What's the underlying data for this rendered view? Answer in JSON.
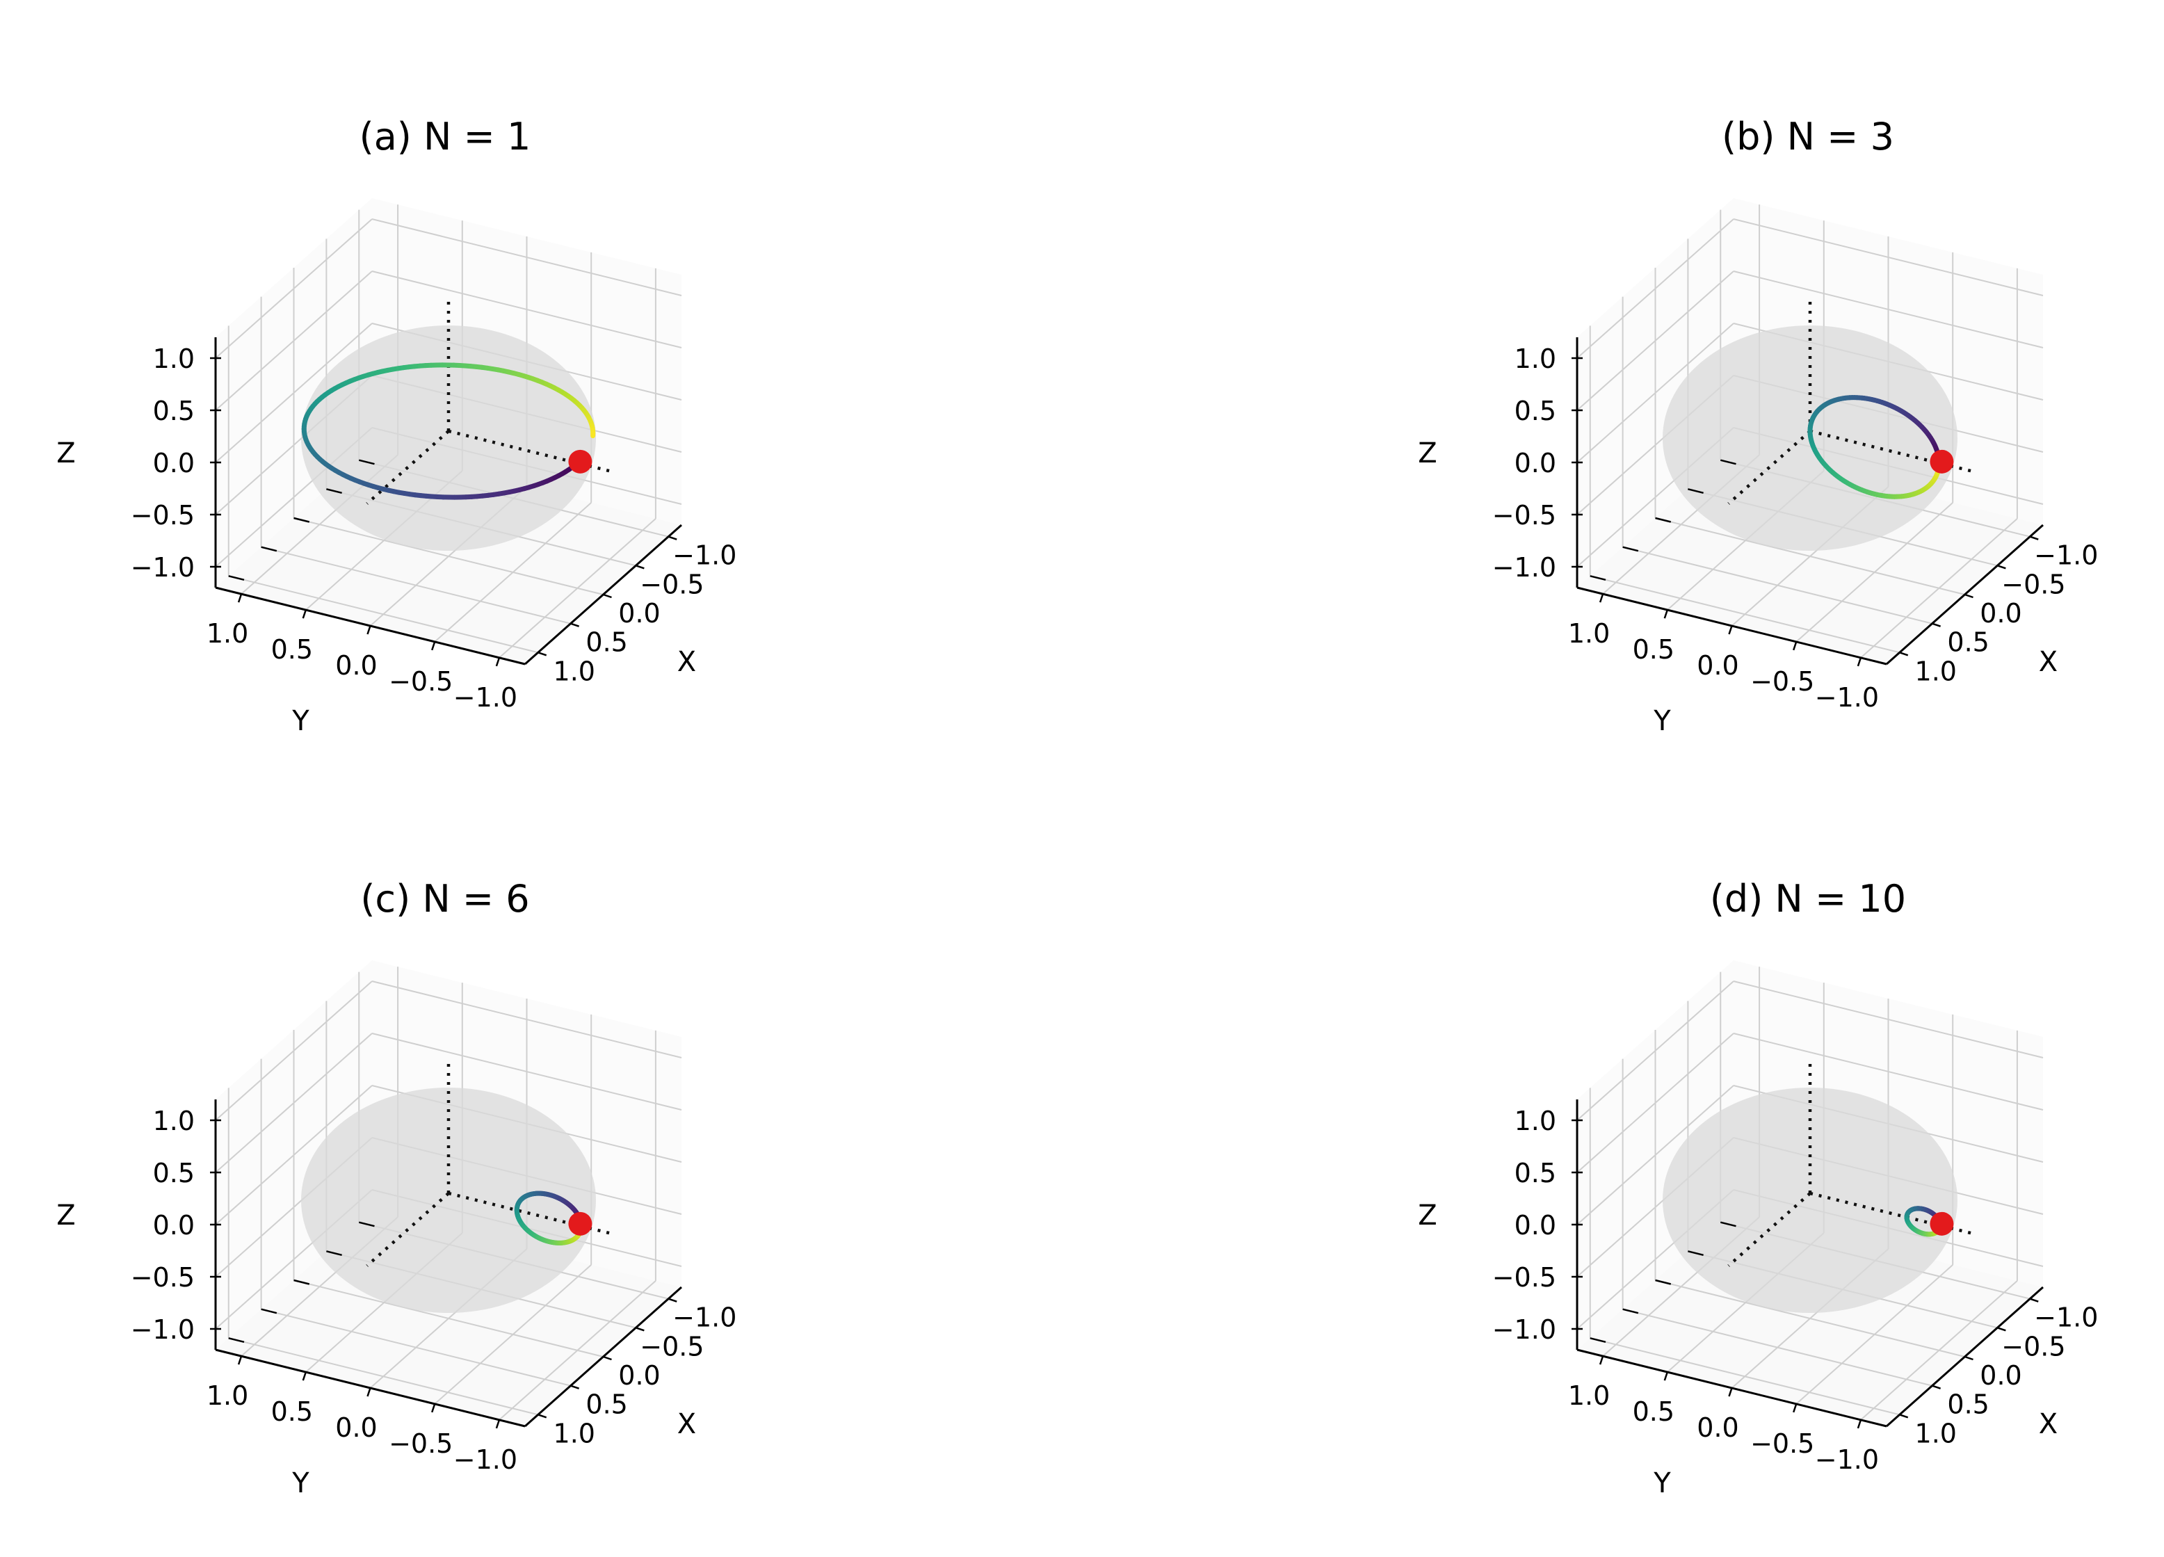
{
  "chart_data": [
    {
      "type": "3d-line",
      "title": "(a) N = 1",
      "xlabel": "X",
      "ylabel": "Y",
      "zlabel": "Z",
      "xlim": [
        -1.2,
        1.2
      ],
      "ylim": [
        -1.2,
        1.2
      ],
      "zlim": [
        -1.2,
        1.2
      ],
      "xticks": [
        "1.0",
        "0.5",
        "0.0",
        "−0.5",
        "−1.0"
      ],
      "yticks": [
        "1.0",
        "0.5",
        "0.0",
        "−0.5",
        "−1.0"
      ],
      "zticks": [
        "1.0",
        "0.5",
        "0.0",
        "−0.5",
        "−1.0"
      ],
      "grid": true,
      "sphere_radius": 1.0,
      "colormap": "viridis",
      "start_point": {
        "x": 1.0,
        "y": 0.0,
        "z": 0.0,
        "color": "#e31a1c"
      },
      "trajectory": {
        "center": [
          0,
          0,
          0
        ],
        "radius": 1.0,
        "plane": "xy",
        "fraction": 0.93
      }
    },
    {
      "type": "3d-line",
      "title": "(b) N = 3",
      "xlabel": "X",
      "ylabel": "Y",
      "zlabel": "Z",
      "xlim": [
        -1.2,
        1.2
      ],
      "ylim": [
        -1.2,
        1.2
      ],
      "zlim": [
        -1.2,
        1.2
      ],
      "xticks": [
        "1.0",
        "0.5",
        "0.0",
        "−0.5",
        "−1.0"
      ],
      "yticks": [
        "1.0",
        "0.5",
        "0.0",
        "−0.5",
        "−1.0"
      ],
      "zticks": [
        "1.0",
        "0.5",
        "0.0",
        "−0.5",
        "−1.0"
      ],
      "grid": true,
      "sphere_radius": 1.0,
      "colormap": "viridis",
      "start_point": {
        "x": 1.0,
        "y": 0.0,
        "z": 0.0,
        "color": "#e31a1c"
      },
      "trajectory": {
        "center": [
          0.5,
          0,
          0
        ],
        "radius": 0.5,
        "plane": "xz",
        "fraction": 1.0
      }
    },
    {
      "type": "3d-line",
      "title": "(c) N = 6",
      "xlabel": "X",
      "ylabel": "Y",
      "zlabel": "Z",
      "xlim": [
        -1.2,
        1.2
      ],
      "ylim": [
        -1.2,
        1.2
      ],
      "zlim": [
        -1.2,
        1.2
      ],
      "xticks": [
        "1.0",
        "0.5",
        "0.0",
        "−0.5",
        "−1.0"
      ],
      "yticks": [
        "1.0",
        "0.5",
        "0.0",
        "−0.5",
        "−1.0"
      ],
      "zticks": [
        "1.0",
        "0.5",
        "0.0",
        "−0.5",
        "−1.0"
      ],
      "grid": true,
      "sphere_radius": 1.0,
      "colormap": "viridis",
      "start_point": {
        "x": 1.0,
        "y": 0.0,
        "z": 0.0,
        "color": "#e31a1c"
      },
      "trajectory": {
        "center": [
          0.78,
          0,
          0
        ],
        "radius": 0.25,
        "plane": "xz",
        "fraction": 1.0
      }
    },
    {
      "type": "3d-line",
      "title": "(d) N = 10",
      "xlabel": "X",
      "ylabel": "Y",
      "zlabel": "Z",
      "xlim": [
        -1.2,
        1.2
      ],
      "ylim": [
        -1.2,
        1.2
      ],
      "zlim": [
        -1.2,
        1.2
      ],
      "xticks": [
        "1.0",
        "0.5",
        "0.0",
        "−0.5",
        "−1.0"
      ],
      "yticks": [
        "1.0",
        "0.5",
        "0.0",
        "−0.5",
        "−1.0"
      ],
      "zticks": [
        "1.0",
        "0.5",
        "0.0",
        "−0.5",
        "−1.0"
      ],
      "grid": true,
      "sphere_radius": 1.0,
      "colormap": "viridis",
      "start_point": {
        "x": 1.0,
        "y": 0.0,
        "z": 0.0,
        "color": "#e31a1c"
      },
      "trajectory": {
        "center": [
          0.88,
          0,
          0
        ],
        "radius": 0.13,
        "plane": "xz",
        "fraction": 1.0
      }
    }
  ]
}
